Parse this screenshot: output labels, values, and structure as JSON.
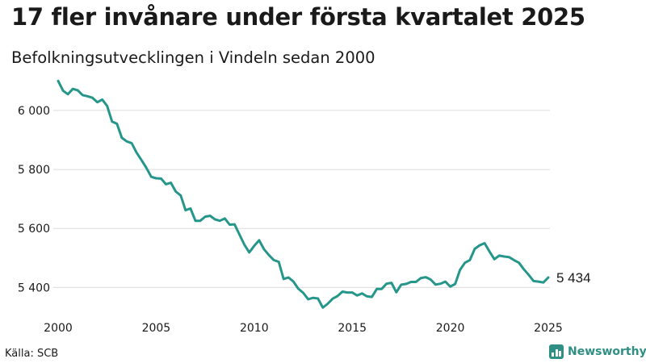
{
  "header": {
    "title": "17 fler invånare under första kvartalet 2025",
    "subtitle": "Befolkningsutvecklingen i Vindeln sedan 2000"
  },
  "footer": {
    "source": "Källa: SCB",
    "brand": "Newsworthy"
  },
  "colors": {
    "line": "#26968a",
    "grid": "#dcdcdc",
    "text": "#1a1a1a",
    "brand": "#2f8f84"
  },
  "chart_data": {
    "type": "line",
    "title": "17 fler invånare under första kvartalet 2025",
    "subtitle": "Befolkningsutvecklingen i Vindeln sedan 2000",
    "x_ticks": [
      {
        "value": 2000,
        "label": "2000"
      },
      {
        "value": 2005,
        "label": "2005"
      },
      {
        "value": 2010,
        "label": "2010"
      },
      {
        "value": 2015,
        "label": "2015"
      },
      {
        "value": 2020,
        "label": "2020"
      },
      {
        "value": 2025,
        "label": "2025"
      }
    ],
    "y_ticks": [
      {
        "value": 5400,
        "label": "5 400"
      },
      {
        "value": 5600,
        "label": "5 600"
      },
      {
        "value": 5800,
        "label": "5 800"
      },
      {
        "value": 6000,
        "label": "6 000"
      }
    ],
    "xlim": [
      2000,
      2025
    ],
    "ylim": [
      5300,
      6120
    ],
    "grid": "horizontal",
    "end_label": "5 434",
    "x": [
      2000.0,
      2000.25,
      2000.5,
      2000.75,
      2001.0,
      2001.25,
      2001.5,
      2001.75,
      2002.0,
      2002.25,
      2002.5,
      2002.75,
      2003.0,
      2003.25,
      2003.5,
      2003.75,
      2004.0,
      2004.25,
      2004.5,
      2004.75,
      2005.0,
      2005.25,
      2005.5,
      2005.75,
      2006.0,
      2006.25,
      2006.5,
      2006.75,
      2007.0,
      2007.25,
      2007.5,
      2007.75,
      2008.0,
      2008.25,
      2008.5,
      2008.75,
      2009.0,
      2009.25,
      2009.5,
      2009.75,
      2010.0,
      2010.25,
      2010.5,
      2010.75,
      2011.0,
      2011.25,
      2011.5,
      2011.75,
      2012.0,
      2012.25,
      2012.5,
      2012.75,
      2013.0,
      2013.25,
      2013.5,
      2013.75,
      2014.0,
      2014.25,
      2014.5,
      2014.75,
      2015.0,
      2015.25,
      2015.5,
      2015.75,
      2016.0,
      2016.25,
      2016.5,
      2016.75,
      2017.0,
      2017.25,
      2017.5,
      2017.75,
      2018.0,
      2018.25,
      2018.5,
      2018.75,
      2019.0,
      2019.25,
      2019.5,
      2019.75,
      2020.0,
      2020.25,
      2020.5,
      2020.75,
      2021.0,
      2021.25,
      2021.5,
      2021.75,
      2022.0,
      2022.25,
      2022.5,
      2022.75,
      2023.0,
      2023.25,
      2023.5,
      2023.75,
      2024.0,
      2024.25,
      2024.5,
      2024.75,
      2025.0
    ],
    "series": [
      {
        "values": [
          6100,
          6067,
          6055,
          6073,
          6068,
          6052,
          6048,
          6043,
          6028,
          6037,
          6015,
          5962,
          5955,
          5907,
          5895,
          5889,
          5857,
          5832,
          5805,
          5775,
          5770,
          5769,
          5750,
          5755,
          5725,
          5712,
          5662,
          5668,
          5626,
          5626,
          5640,
          5643,
          5631,
          5626,
          5634,
          5613,
          5614,
          5579,
          5545,
          5519,
          5541,
          5560,
          5530,
          5510,
          5493,
          5487,
          5429,
          5434,
          5420,
          5396,
          5382,
          5360,
          5365,
          5363,
          5332,
          5345,
          5362,
          5371,
          5386,
          5383,
          5383,
          5373,
          5380,
          5370,
          5368,
          5395,
          5395,
          5413,
          5416,
          5384,
          5410,
          5412,
          5419,
          5419,
          5432,
          5435,
          5427,
          5410,
          5413,
          5420,
          5403,
          5412,
          5460,
          5484,
          5493,
          5531,
          5543,
          5550,
          5522,
          5496,
          5508,
          5505,
          5503,
          5493,
          5484,
          5462,
          5443,
          5422,
          5420,
          5417,
          5434
        ]
      }
    ]
  }
}
